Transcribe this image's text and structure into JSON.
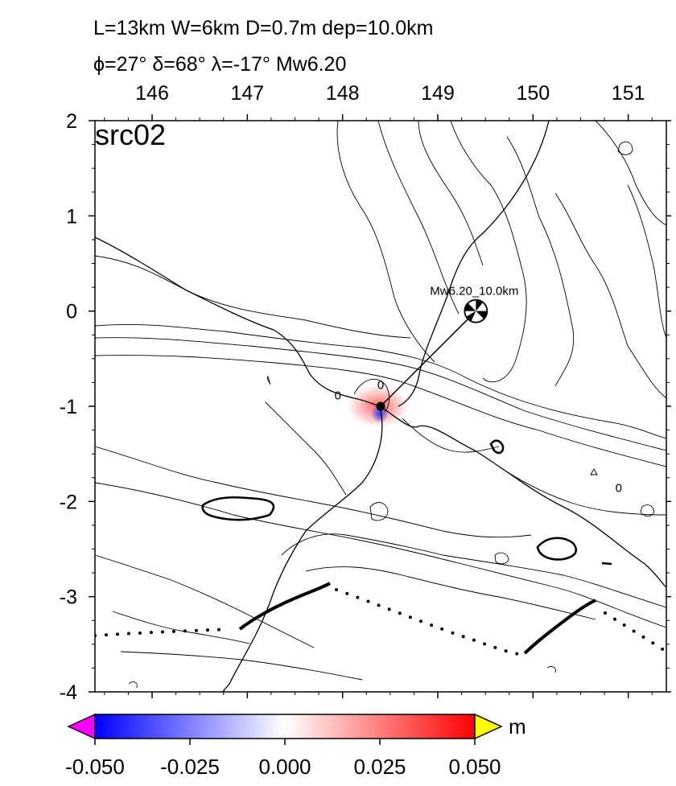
{
  "title": {
    "line1": "L=13km W=6km D=0.7m dep=10.0km",
    "line2_parts": [
      "ϕ=27° ",
      "δ=68° ",
      "λ=-17° ",
      "Mw6.20"
    ]
  },
  "panel_label": "src02",
  "axes": {
    "x_ticks": [
      {
        "value": 146,
        "label": "146"
      },
      {
        "value": 147,
        "label": "147"
      },
      {
        "value": 148,
        "label": "148"
      },
      {
        "value": 149,
        "label": "149"
      },
      {
        "value": 150,
        "label": "150"
      },
      {
        "value": 151,
        "label": "151"
      }
    ],
    "y_ticks": [
      {
        "value": 2,
        "label": "2"
      },
      {
        "value": 1,
        "label": "1"
      },
      {
        "value": 0,
        "label": "0"
      },
      {
        "value": -1,
        "label": "-1"
      },
      {
        "value": -2,
        "label": "-2"
      },
      {
        "value": -3,
        "label": "-3"
      },
      {
        "value": -4,
        "label": "-4"
      }
    ],
    "xlim": [
      145.4,
      151.4
    ],
    "ylim": [
      -4,
      2
    ]
  },
  "epicenter": {
    "lon": 149.4,
    "lat": 0.0,
    "label": "Mw6.20_10.0km"
  },
  "fault": {
    "lon": 148.4,
    "lat": -1.0
  },
  "contour_labels": [
    {
      "text": "0",
      "lon": 147.95,
      "lat": -0.93
    },
    {
      "text": "0",
      "lon": 148.4,
      "lat": -0.82
    },
    {
      "text": "0",
      "lon": 150.9,
      "lat": -1.9
    }
  ],
  "colorbar": {
    "unit": "m",
    "min": -0.05,
    "max": 0.05,
    "tick_labels": [
      "-0.050",
      "-0.025",
      "0.000",
      "0.025",
      "0.050"
    ],
    "low_color": "#ff00ff",
    "high_color": "#ffff00",
    "colors": [
      "#0000ff",
      "#ffffff",
      "#ff0000"
    ]
  }
}
